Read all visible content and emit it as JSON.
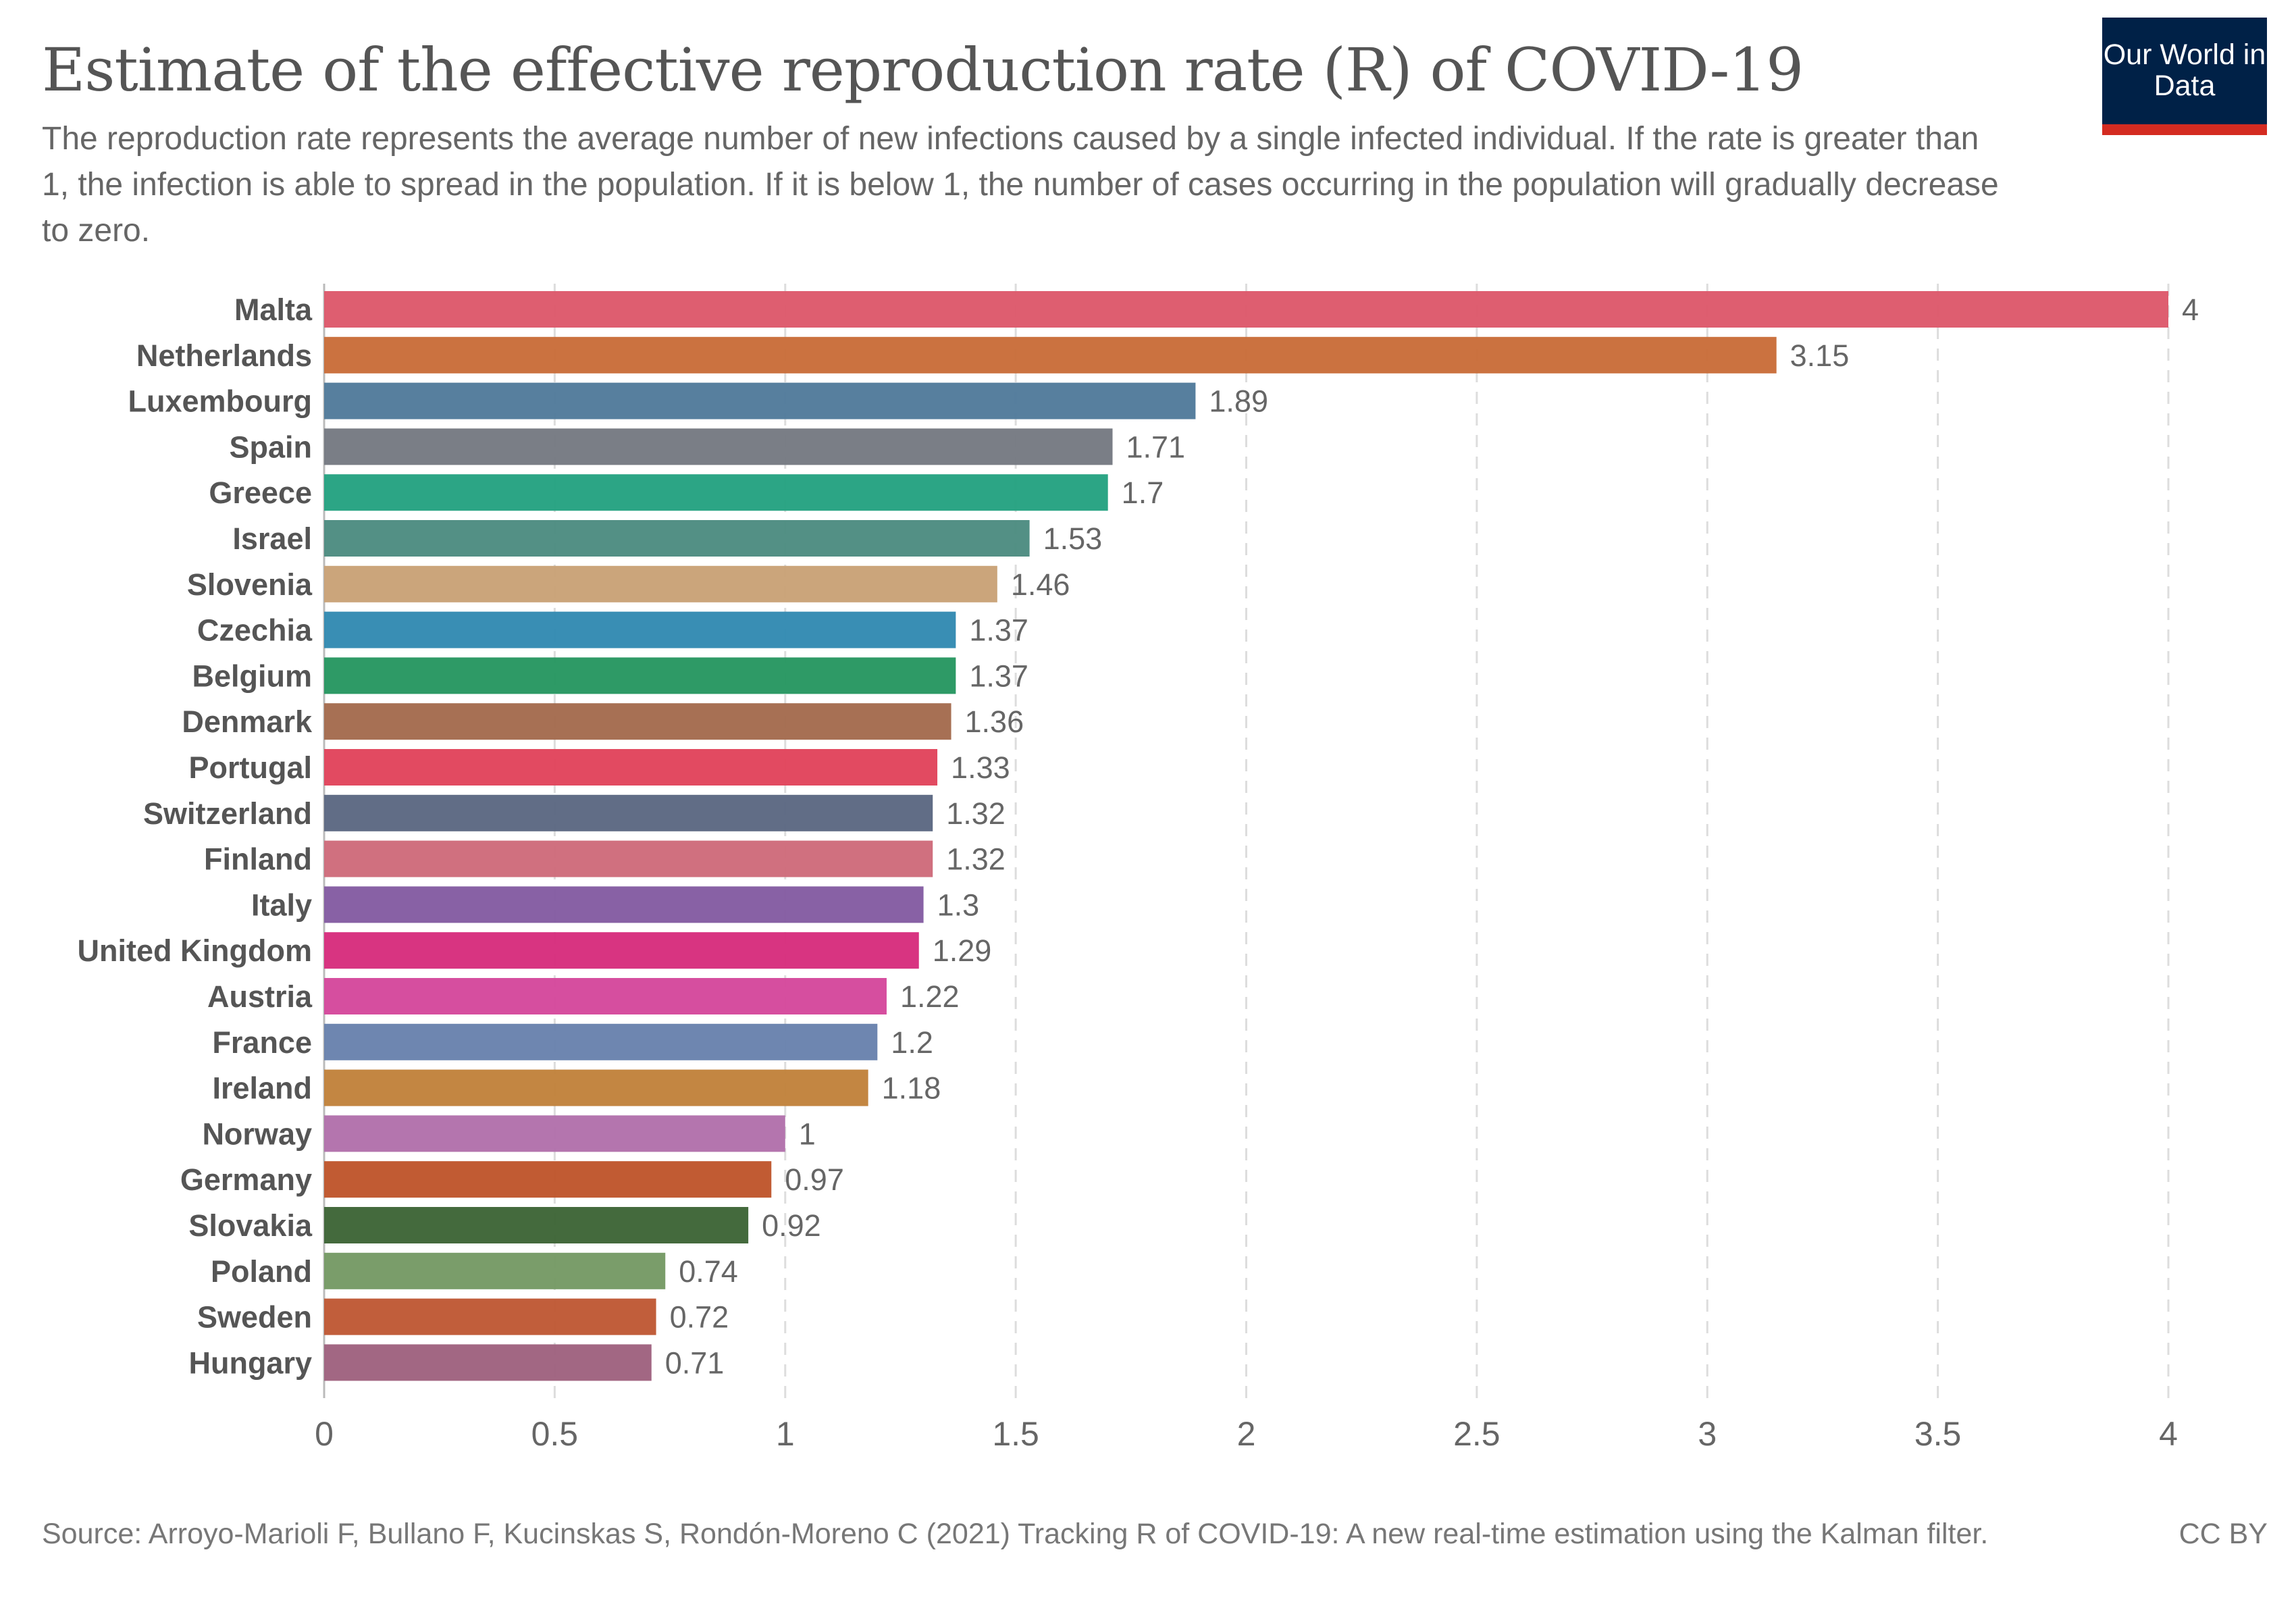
{
  "header": {
    "title": "Estimate of the effective reproduction rate (R) of COVID-19",
    "subtitle": "The reproduction rate represents the average number of new infections caused by a single infected individual. If the rate is greater than 1, the infection is able to spread in the population. If it is below 1, the number of cases occurring in the population will gradually decrease to zero.",
    "logo_text": "Our World in Data",
    "logo_bg": "#002147",
    "logo_stripe": "#d42b21"
  },
  "footer": {
    "source": "Source: Arroyo-Marioli F, Bullano F, Kucinskas S, Rondón-Moreno C (2021) Tracking R of COVID-19: A new real-time estimation using the Kalman filter.",
    "license": "CC BY"
  },
  "chart_data": {
    "type": "bar",
    "orientation": "horizontal",
    "title": "Estimate of the effective reproduction rate (R) of COVID-19",
    "xlabel": "",
    "ylabel": "",
    "xlim": [
      0,
      4
    ],
    "x_ticks": [
      "0",
      "0.5",
      "1",
      "1.5",
      "2",
      "2.5",
      "3",
      "3.5",
      "4"
    ],
    "grid": "vertical dashed",
    "categories": [
      "Malta",
      "Netherlands",
      "Luxembourg",
      "Spain",
      "Greece",
      "Israel",
      "Slovenia",
      "Czechia",
      "Belgium",
      "Denmark",
      "Portugal",
      "Switzerland",
      "Finland",
      "Italy",
      "United Kingdom",
      "Austria",
      "France",
      "Ireland",
      "Norway",
      "Germany",
      "Slovakia",
      "Poland",
      "Sweden",
      "Hungary"
    ],
    "values": [
      4,
      3.15,
      1.89,
      1.71,
      1.7,
      1.53,
      1.46,
      1.37,
      1.37,
      1.36,
      1.33,
      1.32,
      1.32,
      1.3,
      1.29,
      1.22,
      1.2,
      1.18,
      1,
      0.97,
      0.92,
      0.74,
      0.72,
      0.71
    ],
    "value_labels": [
      "4",
      "3.15",
      "1.89",
      "1.71",
      "1.7",
      "1.53",
      "1.46",
      "1.37",
      "1.37",
      "1.36",
      "1.33",
      "1.32",
      "1.32",
      "1.3",
      "1.29",
      "1.22",
      "1.2",
      "1.18",
      "1",
      "0.97",
      "0.92",
      "0.74",
      "0.72",
      "0.71"
    ],
    "colors": [
      "#DC5568",
      "#C86A36",
      "#4E7899",
      "#737780",
      "#21A07E",
      "#4A8A7E",
      "#C8A074",
      "#2E88B0",
      "#23955E",
      "#A2684B",
      "#E04058",
      "#596580",
      "#CE6878",
      "#8258A0",
      "#D6297A",
      "#D4449A",
      "#6680AC",
      "#C07F38",
      "#B06EAA",
      "#BE5228",
      "#3A6233",
      "#739862",
      "#BE5530",
      "#9D5F7C"
    ]
  }
}
